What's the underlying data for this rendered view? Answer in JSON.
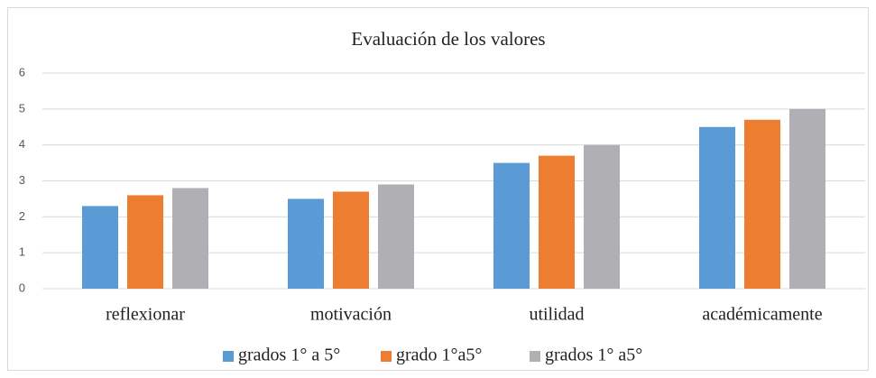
{
  "chart_data": {
    "type": "bar",
    "title": "Evaluación de los valores",
    "categories": [
      "reflexionar",
      "motivación",
      "utilidad",
      "académicamente"
    ],
    "series": [
      {
        "name": "grados 1° a 5°",
        "color": "#5b9bd5",
        "values": [
          2.3,
          2.5,
          3.5,
          4.5
        ]
      },
      {
        "name": "grado 1°a5°",
        "color": "#ed7d31",
        "values": [
          2.6,
          2.7,
          3.7,
          4.7
        ]
      },
      {
        "name": "grados 1° a5°",
        "color": "#b0b0b4",
        "values": [
          2.8,
          2.9,
          4.0,
          5.0
        ]
      }
    ],
    "ylim": [
      0,
      6
    ],
    "yticks": [
      0,
      1,
      2,
      3,
      4,
      5,
      6
    ],
    "grid": true,
    "legend": "bottom"
  }
}
